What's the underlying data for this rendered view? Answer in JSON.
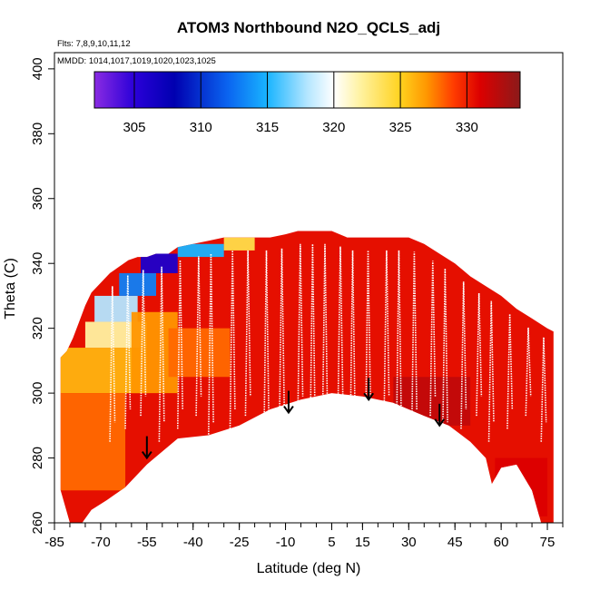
{
  "chart_data": {
    "type": "heatmap",
    "title": "ATOM3 Northbound N2O_QCLS_adj",
    "flights_label": "Flts: 7,8,9,10,11,12",
    "dates_label": "MMDD: 1014,1017,1019,1020,1023,1025",
    "xlabel": "Latitude (deg N)",
    "ylabel": "Theta (C)",
    "xlim": [
      -85,
      80
    ],
    "ylim": [
      260,
      405
    ],
    "x_ticks": [
      -85,
      -70,
      -55,
      -40,
      -25,
      -10,
      5,
      15,
      30,
      45,
      60,
      75
    ],
    "y_ticks": [
      260,
      280,
      300,
      320,
      340,
      360,
      380,
      400
    ],
    "colorbar": {
      "ticks": [
        305,
        310,
        315,
        320,
        325,
        330
      ],
      "range": [
        302,
        334
      ],
      "stops": [
        {
          "value": 302,
          "color": "#8a2be2"
        },
        {
          "value": 305,
          "color": "#2a00d8"
        },
        {
          "value": 308,
          "color": "#0000b0"
        },
        {
          "value": 312,
          "color": "#0a64f0"
        },
        {
          "value": 315,
          "color": "#19b4ff"
        },
        {
          "value": 318,
          "color": "#b4e6ff"
        },
        {
          "value": 320,
          "color": "#ffffff"
        },
        {
          "value": 322,
          "color": "#fff2a0"
        },
        {
          "value": 325,
          "color": "#ffd21e"
        },
        {
          "value": 327,
          "color": "#ff9600"
        },
        {
          "value": 329,
          "color": "#ff3c00"
        },
        {
          "value": 331,
          "color": "#dc0000"
        },
        {
          "value": 334,
          "color": "#8b1a1a"
        }
      ]
    },
    "coverage_top": [
      [
        -83,
        311
      ],
      [
        -81,
        313
      ],
      [
        -79,
        317
      ],
      [
        -77,
        322
      ],
      [
        -75,
        327
      ],
      [
        -73,
        331
      ],
      [
        -70,
        334
      ],
      [
        -67,
        337
      ],
      [
        -64,
        339
      ],
      [
        -61,
        341
      ],
      [
        -58,
        342
      ],
      [
        -55,
        342
      ],
      [
        -52,
        343
      ],
      [
        -48,
        343
      ],
      [
        -45,
        345
      ],
      [
        -40,
        346
      ],
      [
        -35,
        347
      ],
      [
        -30,
        348
      ],
      [
        -25,
        348
      ],
      [
        -20,
        348
      ],
      [
        -15,
        348
      ],
      [
        -10,
        349
      ],
      [
        -6,
        350
      ],
      [
        0,
        350
      ],
      [
        5,
        350
      ],
      [
        10,
        348
      ],
      [
        20,
        348
      ],
      [
        30,
        348
      ],
      [
        35,
        346
      ],
      [
        40,
        343
      ],
      [
        45,
        340
      ],
      [
        50,
        336
      ],
      [
        55,
        333
      ],
      [
        60,
        330
      ],
      [
        65,
        326
      ],
      [
        70,
        323
      ],
      [
        75,
        320
      ],
      [
        77,
        319
      ]
    ],
    "coverage_bottom": [
      [
        77,
        260
      ],
      [
        73,
        260
      ],
      [
        70,
        270
      ],
      [
        65,
        278
      ],
      [
        60,
        277
      ],
      [
        57,
        272
      ],
      [
        55,
        280
      ],
      [
        50,
        285
      ],
      [
        43,
        290
      ],
      [
        35,
        293
      ],
      [
        25,
        297
      ],
      [
        15,
        299
      ],
      [
        5,
        300
      ],
      [
        -5,
        298
      ],
      [
        -15,
        295
      ],
      [
        -25,
        290
      ],
      [
        -35,
        287
      ],
      [
        -45,
        286
      ],
      [
        -55,
        278
      ],
      [
        -62,
        271
      ],
      [
        -68,
        267
      ],
      [
        -73,
        264
      ],
      [
        -76,
        260
      ],
      [
        -80,
        260
      ],
      [
        -83,
        270
      ]
    ],
    "field_cells": [
      {
        "x": [
          -84,
          -55
        ],
        "y": [
          300,
          314
        ],
        "value": 326
      },
      {
        "x": [
          -84,
          -62
        ],
        "y": [
          270,
          300
        ],
        "value": 328
      },
      {
        "x": [
          -75,
          -55
        ],
        "y": [
          314,
          322
        ],
        "value": 322
      },
      {
        "x": [
          -72,
          -58
        ],
        "y": [
          322,
          330
        ],
        "value": 318
      },
      {
        "x": [
          -64,
          -52
        ],
        "y": [
          330,
          337
        ],
        "value": 313
      },
      {
        "x": [
          -57,
          -45
        ],
        "y": [
          337,
          343
        ],
        "value": 306
      },
      {
        "x": [
          -45,
          -30
        ],
        "y": [
          342,
          346
        ],
        "value": 315
      },
      {
        "x": [
          -30,
          -20
        ],
        "y": [
          344,
          348
        ],
        "value": 324
      },
      {
        "x": [
          -60,
          -45
        ],
        "y": [
          300,
          325
        ],
        "value": 327
      },
      {
        "x": [
          -48,
          -28
        ],
        "y": [
          305,
          320
        ],
        "value": 328
      },
      {
        "x": [
          25,
          50
        ],
        "y": [
          290,
          305
        ],
        "value": 332
      },
      {
        "x": [
          58,
          75
        ],
        "y": [
          262,
          280
        ],
        "value": 331
      }
    ],
    "ascent_descent_lats": [
      -67,
      -62,
      -57,
      -51,
      -45,
      -39,
      -35,
      -28,
      -23,
      -17,
      -12,
      -6,
      -2,
      2,
      7,
      11,
      16,
      22,
      26,
      31,
      37,
      41,
      47,
      52,
      56,
      62,
      68,
      73
    ],
    "arrows": [
      {
        "lat": -55,
        "theta": 280
      },
      {
        "lat": -9,
        "theta": 294
      },
      {
        "lat": 17,
        "theta": 298
      },
      {
        "lat": 40,
        "theta": 290
      }
    ]
  }
}
